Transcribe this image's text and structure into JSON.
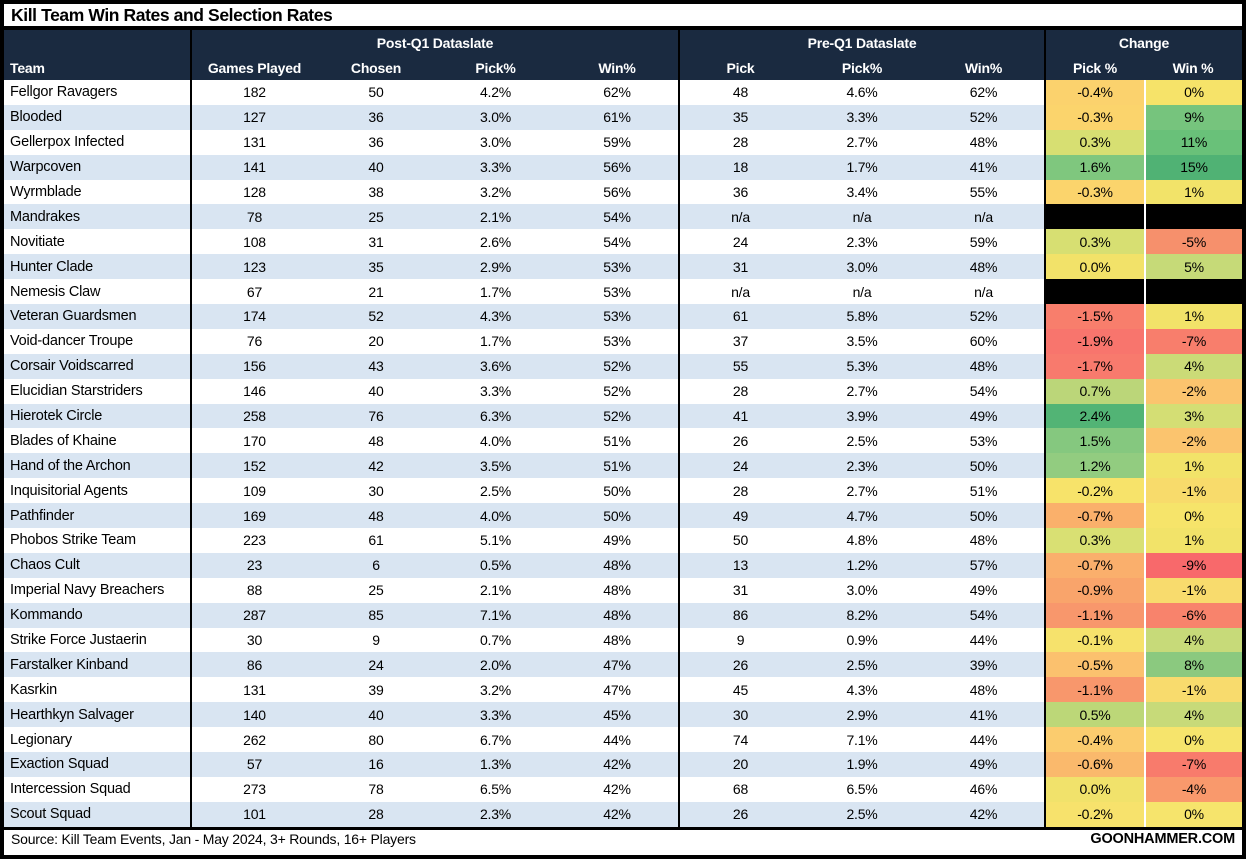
{
  "title": "Kill Team Win Rates and Selection Rates",
  "footer": {
    "source": "Source: Kill Team Events, Jan - May 2024, 3+ Rounds, 16+ Players",
    "site": "GOONHAMMER.COM"
  },
  "colors": {
    "header_bg": "#1A2A40",
    "row_alt_bg": "#D9E5F2",
    "na_cell_bg": "#000000",
    "divider_white": "#FFFFFF",
    "border_black": "#000000"
  },
  "chart_data": {
    "type": "table",
    "title": "Kill Team Win Rates and Selection Rates",
    "column_groups": [
      {
        "label": "Post-Q1 Dataslate",
        "span": 4
      },
      {
        "label": "Pre-Q1 Dataslate",
        "span": 3
      },
      {
        "label": "Change",
        "span": 2
      }
    ],
    "columns": [
      "Team",
      "Games Played",
      "Chosen",
      "Pick%",
      "Win%",
      "Pick",
      "Pick%",
      "Win%",
      "Pick %",
      "Win %"
    ],
    "rows": [
      {
        "team": "Fellgor Ravagers",
        "games": "182",
        "chosen": "50",
        "pick": "4.2%",
        "win": "62%",
        "pre_pick": "48",
        "pre_pick_pct": "4.6%",
        "pre_win": "62%",
        "chg_pick": "-0.4%",
        "chg_pick_color": "#FBD26D",
        "chg_win": "0%",
        "chg_win_color": "#F6E369"
      },
      {
        "team": "Blooded",
        "games": "127",
        "chosen": "36",
        "pick": "3.0%",
        "win": "61%",
        "pre_pick": "35",
        "pre_pick_pct": "3.3%",
        "pre_win": "52%",
        "chg_pick": "-0.3%",
        "chg_pick_color": "#FBD46C",
        "chg_win": "9%",
        "chg_win_color": "#76C47D"
      },
      {
        "team": "Gellerpox Infected",
        "games": "131",
        "chosen": "36",
        "pick": "3.0%",
        "win": "59%",
        "pre_pick": "28",
        "pre_pick_pct": "2.7%",
        "pre_win": "48%",
        "chg_pick": "0.3%",
        "chg_pick_color": "#D7DF72",
        "chg_win": "11%",
        "chg_win_color": "#69C179"
      },
      {
        "team": "Warpcoven",
        "games": "141",
        "chosen": "40",
        "pick": "3.3%",
        "win": "56%",
        "pre_pick": "18",
        "pre_pick_pct": "1.7%",
        "pre_win": "41%",
        "chg_pick": "1.6%",
        "chg_pick_color": "#7FC77E",
        "chg_win": "15%",
        "chg_win_color": "#50B274"
      },
      {
        "team": "Wyrmblade",
        "games": "128",
        "chosen": "38",
        "pick": "3.2%",
        "win": "56%",
        "pre_pick": "36",
        "pre_pick_pct": "3.4%",
        "pre_win": "55%",
        "chg_pick": "-0.3%",
        "chg_pick_color": "#FBD46C",
        "chg_win": "1%",
        "chg_win_color": "#F2E369"
      },
      {
        "team": "Mandrakes",
        "games": "78",
        "chosen": "25",
        "pick": "2.1%",
        "win": "54%",
        "pre_pick": "n/a",
        "pre_pick_pct": "n/a",
        "pre_win": "n/a",
        "chg_pick": "",
        "chg_pick_color": "#000000",
        "chg_win": "",
        "chg_win_color": "#000000"
      },
      {
        "team": "Novitiate",
        "games": "108",
        "chosen": "31",
        "pick": "2.6%",
        "win": "54%",
        "pre_pick": "24",
        "pre_pick_pct": "2.3%",
        "pre_win": "59%",
        "chg_pick": "0.3%",
        "chg_pick_color": "#D7DF72",
        "chg_win": "-5%",
        "chg_win_color": "#F6906C"
      },
      {
        "team": "Hunter Clade",
        "games": "123",
        "chosen": "35",
        "pick": "2.9%",
        "win": "53%",
        "pre_pick": "31",
        "pre_pick_pct": "3.0%",
        "pre_win": "48%",
        "chg_pick": "0.0%",
        "chg_pick_color": "#F2E269",
        "chg_win": "5%",
        "chg_win_color": "#C6DA78"
      },
      {
        "team": "Nemesis Claw",
        "games": "67",
        "chosen": "21",
        "pick": "1.7%",
        "win": "53%",
        "pre_pick": "n/a",
        "pre_pick_pct": "n/a",
        "pre_win": "n/a",
        "chg_pick": "",
        "chg_pick_color": "#000000",
        "chg_win": "",
        "chg_win_color": "#000000"
      },
      {
        "team": "Veteran Guardsmen",
        "games": "174",
        "chosen": "52",
        "pick": "4.3%",
        "win": "53%",
        "pre_pick": "61",
        "pre_pick_pct": "5.8%",
        "pre_win": "52%",
        "chg_pick": "-1.5%",
        "chg_pick_color": "#F87E6C",
        "chg_win": "1%",
        "chg_win_color": "#F2E369"
      },
      {
        "team": "Void-dancer Troupe",
        "games": "76",
        "chosen": "20",
        "pick": "1.7%",
        "win": "53%",
        "pre_pick": "37",
        "pre_pick_pct": "3.5%",
        "pre_win": "60%",
        "chg_pick": "-1.9%",
        "chg_pick_color": "#F8756D",
        "chg_win": "-7%",
        "chg_win_color": "#F87E6C"
      },
      {
        "team": "Corsair Voidscarred",
        "games": "156",
        "chosen": "43",
        "pick": "3.6%",
        "win": "52%",
        "pre_pick": "55",
        "pre_pick_pct": "5.3%",
        "pre_win": "48%",
        "chg_pick": "-1.7%",
        "chg_pick_color": "#F87A6D",
        "chg_win": "4%",
        "chg_win_color": "#CBDB77"
      },
      {
        "team": "Elucidian Starstriders",
        "games": "146",
        "chosen": "40",
        "pick": "3.3%",
        "win": "52%",
        "pre_pick": "28",
        "pre_pick_pct": "2.7%",
        "pre_win": "54%",
        "chg_pick": "0.7%",
        "chg_pick_color": "#BBD679",
        "chg_win": "-2%",
        "chg_win_color": "#FBC46E"
      },
      {
        "team": "Hierotek Circle",
        "games": "258",
        "chosen": "76",
        "pick": "6.3%",
        "win": "52%",
        "pre_pick": "41",
        "pre_pick_pct": "3.9%",
        "pre_win": "49%",
        "chg_pick": "2.4%",
        "chg_pick_color": "#52B475",
        "chg_win": "3%",
        "chg_win_color": "#D4DE74"
      },
      {
        "team": "Blades of Khaine",
        "games": "170",
        "chosen": "48",
        "pick": "4.0%",
        "win": "51%",
        "pre_pick": "26",
        "pre_pick_pct": "2.5%",
        "pre_win": "53%",
        "chg_pick": "1.5%",
        "chg_pick_color": "#85C87F",
        "chg_win": "-2%",
        "chg_win_color": "#FBC46E"
      },
      {
        "team": "Hand of the Archon",
        "games": "152",
        "chosen": "42",
        "pick": "3.5%",
        "win": "51%",
        "pre_pick": "24",
        "pre_pick_pct": "2.3%",
        "pre_win": "50%",
        "chg_pick": "1.2%",
        "chg_pick_color": "#92CC80",
        "chg_win": "1%",
        "chg_win_color": "#F2E369"
      },
      {
        "team": "Inquisitorial Agents",
        "games": "109",
        "chosen": "30",
        "pick": "2.5%",
        "win": "50%",
        "pre_pick": "28",
        "pre_pick_pct": "2.7%",
        "pre_win": "51%",
        "chg_pick": "-0.2%",
        "chg_pick_color": "#F7E36A",
        "chg_win": "-1%",
        "chg_win_color": "#F8DB6B"
      },
      {
        "team": "Pathfinder",
        "games": "169",
        "chosen": "48",
        "pick": "4.0%",
        "win": "50%",
        "pre_pick": "49",
        "pre_pick_pct": "4.7%",
        "pre_win": "50%",
        "chg_pick": "-0.7%",
        "chg_pick_color": "#FAB06B",
        "chg_win": "0%",
        "chg_win_color": "#F6E46A"
      },
      {
        "team": "Phobos Strike Team",
        "games": "223",
        "chosen": "61",
        "pick": "5.1%",
        "win": "49%",
        "pre_pick": "50",
        "pre_pick_pct": "4.8%",
        "pre_win": "48%",
        "chg_pick": "0.3%",
        "chg_pick_color": "#D9E073",
        "chg_win": "1%",
        "chg_win_color": "#F2E369"
      },
      {
        "team": "Chaos Cult",
        "games": "23",
        "chosen": "6",
        "pick": "0.5%",
        "win": "48%",
        "pre_pick": "13",
        "pre_pick_pct": "1.2%",
        "pre_win": "57%",
        "chg_pick": "-0.7%",
        "chg_pick_color": "#FAAF6C",
        "chg_win": "-9%",
        "chg_win_color": "#F8696B"
      },
      {
        "team": "Imperial Navy Breachers",
        "games": "88",
        "chosen": "25",
        "pick": "2.1%",
        "win": "48%",
        "pre_pick": "31",
        "pre_pick_pct": "3.0%",
        "pre_win": "49%",
        "chg_pick": "-0.9%",
        "chg_pick_color": "#F9A46B",
        "chg_win": "-1%",
        "chg_win_color": "#F8DB6D"
      },
      {
        "team": "Kommando",
        "games": "287",
        "chosen": "85",
        "pick": "7.1%",
        "win": "48%",
        "pre_pick": "86",
        "pre_pick_pct": "8.2%",
        "pre_win": "54%",
        "chg_pick": "-1.1%",
        "chg_pick_color": "#F8976C",
        "chg_win": "-6%",
        "chg_win_color": "#F8836C"
      },
      {
        "team": "Strike Force Justaerin",
        "games": "30",
        "chosen": "9",
        "pick": "0.7%",
        "win": "48%",
        "pre_pick": "9",
        "pre_pick_pct": "0.9%",
        "pre_win": "44%",
        "chg_pick": "-0.1%",
        "chg_pick_color": "#F6E26C",
        "chg_win": "4%",
        "chg_win_color": "#C7DA79"
      },
      {
        "team": "Farstalker Kinband",
        "games": "86",
        "chosen": "24",
        "pick": "2.0%",
        "win": "47%",
        "pre_pick": "26",
        "pre_pick_pct": "2.5%",
        "pre_win": "39%",
        "chg_pick": "-0.5%",
        "chg_pick_color": "#FBC16E",
        "chg_win": "8%",
        "chg_win_color": "#8BC97F"
      },
      {
        "team": "Kasrkin",
        "games": "131",
        "chosen": "39",
        "pick": "3.2%",
        "win": "47%",
        "pre_pick": "45",
        "pre_pick_pct": "4.3%",
        "pre_win": "48%",
        "chg_pick": "-1.1%",
        "chg_pick_color": "#F8976C",
        "chg_win": "-1%",
        "chg_win_color": "#F8DB6D"
      },
      {
        "team": "Hearthkyn Salvager",
        "games": "140",
        "chosen": "40",
        "pick": "3.3%",
        "win": "45%",
        "pre_pick": "30",
        "pre_pick_pct": "2.9%",
        "pre_win": "41%",
        "chg_pick": "0.5%",
        "chg_pick_color": "#BCD778",
        "chg_win": "4%",
        "chg_win_color": "#C7DA79"
      },
      {
        "team": "Legionary",
        "games": "262",
        "chosen": "80",
        "pick": "6.7%",
        "win": "44%",
        "pre_pick": "74",
        "pre_pick_pct": "7.1%",
        "pre_win": "44%",
        "chg_pick": "-0.4%",
        "chg_pick_color": "#FBCC6E",
        "chg_win": "0%",
        "chg_win_color": "#F6E46C"
      },
      {
        "team": "Exaction Squad",
        "games": "57",
        "chosen": "16",
        "pick": "1.3%",
        "win": "42%",
        "pre_pick": "20",
        "pre_pick_pct": "1.9%",
        "pre_win": "49%",
        "chg_pick": "-0.6%",
        "chg_pick_color": "#FAB96C",
        "chg_win": "-7%",
        "chg_win_color": "#F87B6C"
      },
      {
        "team": "Intercession Squad",
        "games": "273",
        "chosen": "78",
        "pick": "6.5%",
        "win": "42%",
        "pre_pick": "68",
        "pre_pick_pct": "6.5%",
        "pre_win": "46%",
        "chg_pick": "0.0%",
        "chg_pick_color": "#F1E26B",
        "chg_win": "-4%",
        "chg_win_color": "#F9996C"
      },
      {
        "team": "Scout Squad",
        "games": "101",
        "chosen": "28",
        "pick": "2.3%",
        "win": "42%",
        "pre_pick": "26",
        "pre_pick_pct": "2.5%",
        "pre_win": "42%",
        "chg_pick": "-0.2%",
        "chg_pick_color": "#F7E26C",
        "chg_win": "0%",
        "chg_win_color": "#F6E46C"
      }
    ]
  }
}
